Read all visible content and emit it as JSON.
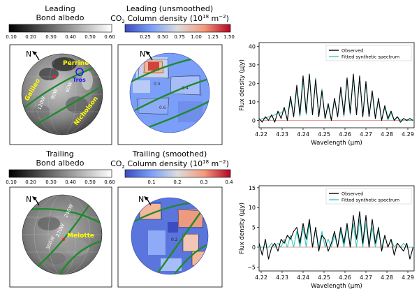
{
  "colors": {
    "observed": "#000000",
    "fitted": "#3cc9bd",
    "zero_line": "#e08080",
    "great_circle": "#1f8a2c",
    "label_yellow": "#ffff00",
    "tros_blue": "#1a1aff"
  },
  "panels": {
    "leading_albedo": {
      "title_line1": "Leading",
      "title_line2": "Bond albedo",
      "colorbar_ticks": [
        "0.10",
        "0.20",
        "0.30",
        "0.40",
        "0.50",
        "0.60"
      ],
      "north": "N",
      "features": [
        "Perrine",
        "Tros",
        "Galileo",
        "Nicholson"
      ],
      "meridians": [
        "90W",
        "60W",
        "120W"
      ]
    },
    "leading_co2": {
      "title_line1": "Leading (unsmoothed)",
      "title_prefix": "CO",
      "title_sub": "2",
      "title_suffix": " Column density (10",
      "title_sup1": "18",
      "title_unit": " m",
      "title_sup2": "−2",
      "title_close": ")",
      "colorbar_ticks": [
        "0.25",
        "0.50",
        "0.75",
        "1.00",
        "1.25",
        "1.50"
      ],
      "north": "N",
      "contour_labels": [
        "0.5",
        "0.4",
        "0.6"
      ]
    },
    "trailing_albedo": {
      "title_line1": "Trailing",
      "title_line2": "Bond albedo",
      "colorbar_ticks": [
        "0.10",
        "0.20",
        "0.30",
        "0.40",
        "0.50",
        "0.60"
      ],
      "north": "N",
      "features": [
        "Melotte"
      ],
      "meridians": [
        "240W",
        "270W",
        "300W"
      ]
    },
    "trailing_co2": {
      "title_line1": "Trailing (smoothed)",
      "title_prefix": "CO",
      "title_sub": "2",
      "title_suffix": " Column density (10",
      "title_sup1": "18",
      "title_unit": " m",
      "title_sup2": "−2",
      "title_close": ")",
      "colorbar_ticks": [
        "0.1",
        "0.2",
        "0.3",
        "0.4"
      ],
      "north": "N",
      "contour_labels": [
        "0.2"
      ]
    }
  },
  "chart_data": [
    {
      "type": "line",
      "xlabel": "Wavelength (μm)",
      "ylabel": "Flux density (μJy)",
      "xlim": [
        4.219,
        4.293
      ],
      "ylim": [
        -4,
        42
      ],
      "xticks": [
        4.22,
        4.23,
        4.24,
        4.25,
        4.26,
        4.27,
        4.28,
        4.29
      ],
      "xtick_labels": [
        "4.22",
        "4.23",
        "4.24",
        "4.25",
        "4.26",
        "4.27",
        "4.28",
        "4.29"
      ],
      "yticks": [
        0,
        10,
        20,
        30,
        40
      ],
      "ytick_labels": [
        "0",
        "10",
        "20",
        "30",
        "40"
      ],
      "legend": [
        "Observed",
        "Fitted synthetic spectrum"
      ],
      "legend_position": "top-right",
      "series": [
        {
          "name": "Observed",
          "x": [
            4.219,
            4.2205,
            4.222,
            4.2235,
            4.225,
            4.2265,
            4.228,
            4.2295,
            4.231,
            4.2325,
            4.234,
            4.2355,
            4.237,
            4.2385,
            4.24,
            4.2415,
            4.243,
            4.2445,
            4.246,
            4.2475,
            4.249,
            4.2505,
            4.252,
            4.2535,
            4.255,
            4.2565,
            4.258,
            4.2595,
            4.261,
            4.2625,
            4.264,
            4.2655,
            4.267,
            4.2685,
            4.27,
            4.2715,
            4.273,
            4.2745,
            4.276,
            4.2775,
            4.279,
            4.2805,
            4.282,
            4.2835,
            4.285,
            4.2865,
            4.288,
            4.2895,
            4.291,
            4.2925
          ],
          "y": [
            1,
            -1,
            2,
            0,
            3,
            -1,
            5,
            1,
            7,
            0,
            13,
            2,
            19,
            3,
            24,
            4,
            25,
            3,
            22,
            2,
            16,
            1,
            9,
            0,
            12,
            2,
            18,
            3,
            23,
            4,
            25,
            3,
            24,
            2,
            21,
            2,
            16,
            1,
            12,
            0,
            8,
            1,
            5,
            0,
            2,
            -1,
            1,
            0,
            1,
            0
          ]
        },
        {
          "name": "Fitted synthetic spectrum",
          "x": [
            4.219,
            4.2205,
            4.222,
            4.2235,
            4.225,
            4.2265,
            4.228,
            4.2295,
            4.231,
            4.2325,
            4.234,
            4.2355,
            4.237,
            4.2385,
            4.24,
            4.2415,
            4.243,
            4.2445,
            4.246,
            4.2475,
            4.249,
            4.2505,
            4.252,
            4.2535,
            4.255,
            4.2565,
            4.258,
            4.2595,
            4.261,
            4.2625,
            4.264,
            4.2655,
            4.267,
            4.2685,
            4.27,
            4.2715,
            4.273,
            4.2745,
            4.276,
            4.2775,
            4.279,
            4.2805,
            4.282,
            4.2835,
            4.285,
            4.2865,
            4.288,
            4.2895,
            4.291,
            4.2925
          ],
          "y": [
            0,
            1,
            1,
            2,
            2,
            3,
            4,
            4,
            6,
            1,
            11,
            2,
            17,
            2,
            22,
            3,
            24,
            3,
            23,
            2,
            17,
            1,
            8,
            0,
            11,
            2,
            17,
            2,
            22,
            3,
            24,
            3,
            23,
            2,
            20,
            2,
            15,
            1,
            11,
            0,
            7,
            0,
            4,
            0,
            2,
            0,
            1,
            0,
            0,
            0
          ]
        }
      ]
    },
    {
      "type": "line",
      "xlabel": "Wavelength (μm)",
      "ylabel": "Flux density (μJy)",
      "xlim": [
        4.219,
        4.293
      ],
      "ylim": [
        -6,
        15.5
      ],
      "xticks": [
        4.22,
        4.23,
        4.24,
        4.25,
        4.26,
        4.27,
        4.28,
        4.29
      ],
      "xtick_labels": [
        "4.22",
        "4.23",
        "4.24",
        "4.25",
        "4.26",
        "4.27",
        "4.28",
        "4.29"
      ],
      "yticks": [
        -5,
        0,
        5,
        10,
        15
      ],
      "ytick_labels": [
        "−5",
        "0",
        "5",
        "10",
        "15"
      ],
      "legend": [
        "Observed",
        "Fitted synthetic spectrum"
      ],
      "legend_position": "top-right",
      "series": [
        {
          "name": "Observed",
          "x": [
            4.219,
            4.2205,
            4.222,
            4.2235,
            4.225,
            4.2265,
            4.228,
            4.2295,
            4.231,
            4.2325,
            4.234,
            4.2355,
            4.237,
            4.2385,
            4.24,
            4.2415,
            4.243,
            4.2445,
            4.246,
            4.2475,
            4.249,
            4.2505,
            4.252,
            4.2535,
            4.255,
            4.2565,
            4.258,
            4.2595,
            4.261,
            4.2625,
            4.264,
            4.2655,
            4.267,
            4.2685,
            4.27,
            4.2715,
            4.273,
            4.2745,
            4.276,
            4.2775,
            4.279,
            4.2805,
            4.282,
            4.2835,
            4.285,
            4.2865,
            4.288,
            4.2895,
            4.291,
            4.2925
          ],
          "y": [
            1,
            -2,
            2,
            -3,
            0,
            1,
            -1,
            2,
            1,
            3,
            2,
            4,
            5,
            1,
            6,
            2,
            7,
            0,
            5,
            -1,
            3,
            2,
            -1,
            1,
            4,
            0,
            5,
            1,
            6,
            0,
            8,
            2,
            9,
            1,
            8,
            0,
            7,
            1,
            5,
            -1,
            3,
            0,
            2,
            -2,
            1,
            0,
            -1,
            1,
            -3,
            0
          ]
        },
        {
          "name": "Fitted synthetic spectrum",
          "x": [
            4.219,
            4.2205,
            4.222,
            4.2235,
            4.225,
            4.2265,
            4.228,
            4.2295,
            4.231,
            4.2325,
            4.234,
            4.2355,
            4.237,
            4.2385,
            4.24,
            4.2415,
            4.243,
            4.2445,
            4.246,
            4.2475,
            4.249,
            4.2505,
            4.252,
            4.2535,
            4.255,
            4.2565,
            4.258,
            4.2595,
            4.261,
            4.2625,
            4.264,
            4.2655,
            4.267,
            4.2685,
            4.27,
            4.2715,
            4.273,
            4.2745,
            4.276,
            4.2775,
            4.279,
            4.2805,
            4.282,
            4.2835,
            4.285,
            4.2865,
            4.288,
            4.2895,
            4.291,
            4.2925
          ],
          "y": [
            0,
            0,
            0,
            0,
            1,
            0,
            1,
            0,
            2,
            0,
            3,
            0,
            4,
            0,
            5,
            0,
            6,
            0,
            5,
            0,
            4,
            0,
            2,
            0,
            3,
            0,
            4,
            0,
            5,
            0,
            6,
            0,
            7,
            0,
            6,
            0,
            5,
            0,
            4,
            0,
            3,
            0,
            2,
            0,
            1,
            0,
            1,
            0,
            0,
            0
          ]
        }
      ]
    }
  ]
}
